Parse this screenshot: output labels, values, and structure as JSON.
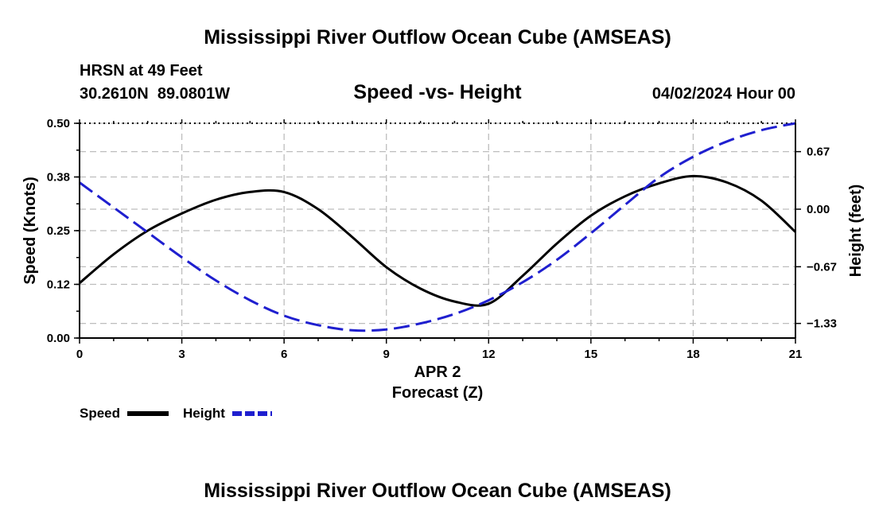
{
  "header": {
    "title": "Mississippi River Outflow Ocean Cube (AMSEAS)",
    "station": "HRSN at 49 Feet",
    "coords": "30.2610N  89.0801W",
    "subtitle": "Speed -vs- Height",
    "datetime": "04/02/2024 Hour 00"
  },
  "footer": {
    "title": "Mississippi River Outflow Ocean Cube (AMSEAS)"
  },
  "chart_data": {
    "type": "line",
    "title": "Speed -vs- Height",
    "xlabel": "Forecast (Z)",
    "xsublabel": "APR 2",
    "ylabel": "Speed (Knots)",
    "y2label": "Height (feet)",
    "xlim": [
      0,
      21
    ],
    "ylim": [
      0,
      0.5
    ],
    "y2lim": [
      -1.5,
      1.0
    ],
    "xticks": [
      0,
      3,
      6,
      9,
      12,
      15,
      18,
      21
    ],
    "xtick_labels": [
      "0",
      "3",
      "6",
      "9",
      "12",
      "15",
      "18",
      "21"
    ],
    "yticks": [
      0,
      0.125,
      0.25,
      0.375,
      0.5
    ],
    "ytick_labels": [
      "0.00",
      "0.12",
      "0.25",
      "0.38",
      "0.50"
    ],
    "y2ticks": [
      -1.33,
      -0.67,
      0,
      0.67
    ],
    "y2tick_labels": [
      "−1.33",
      "−0.67",
      "0.00",
      "0.67"
    ],
    "grid": true,
    "series": [
      {
        "name": "Speed",
        "axis": "left",
        "color": "#000000",
        "style": "solid",
        "x": [
          0,
          1,
          2,
          3,
          4,
          5,
          6,
          7,
          8,
          9,
          10,
          11,
          12,
          13,
          14,
          15,
          16,
          17,
          18,
          19,
          20,
          21
        ],
        "values": [
          0.128,
          0.195,
          0.25,
          0.29,
          0.322,
          0.34,
          0.34,
          0.3,
          0.235,
          0.165,
          0.115,
          0.085,
          0.08,
          0.145,
          0.22,
          0.285,
          0.33,
          0.36,
          0.377,
          0.362,
          0.32,
          0.247
        ]
      },
      {
        "name": "Height",
        "axis": "right",
        "color": "#1f1fcf",
        "style": "dashed",
        "x": [
          0,
          1,
          2,
          3,
          4,
          5,
          6,
          7,
          8,
          9,
          10,
          11,
          12,
          13,
          14,
          15,
          16,
          17,
          18,
          19,
          20,
          21
        ],
        "values": [
          0.31,
          0.02,
          -0.27,
          -0.56,
          -0.83,
          -1.06,
          -1.24,
          -1.35,
          -1.41,
          -1.4,
          -1.33,
          -1.22,
          -1.06,
          -0.85,
          -0.59,
          -0.28,
          0.05,
          0.37,
          0.61,
          0.79,
          0.92,
          1.0
        ]
      }
    ],
    "legend": [
      {
        "label": "Speed",
        "color": "#000000",
        "style": "solid"
      },
      {
        "label": "Height",
        "color": "#1f1fcf",
        "style": "dashed"
      }
    ]
  }
}
